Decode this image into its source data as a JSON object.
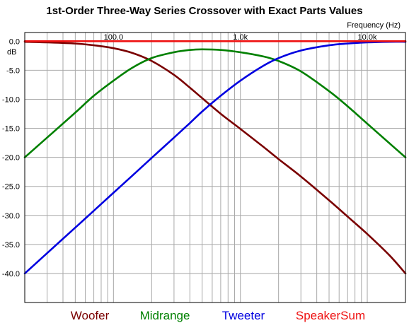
{
  "chart_data": {
    "type": "line",
    "title": "1st-Order Three-Way Series Crossover with Exact Parts Values",
    "xlabel": "Frequency  (Hz)",
    "ylabel": "dB",
    "xscale": "log",
    "xlim": [
      20,
      20000
    ],
    "ylim": [
      -45,
      1.5
    ],
    "x_ticks": [
      {
        "value": 100,
        "label": "100.0"
      },
      {
        "value": 1000,
        "label": "1.0k"
      },
      {
        "value": 10000,
        "label": "10.0k"
      }
    ],
    "y_ticks": [
      {
        "value": 0,
        "label": "0.0"
      },
      {
        "value": -5,
        "label": "-5.0"
      },
      {
        "value": -10,
        "label": "-10.0"
      },
      {
        "value": -15,
        "label": "-15.0"
      },
      {
        "value": -20,
        "label": "-20.0"
      },
      {
        "value": -25,
        "label": "-25.0"
      },
      {
        "value": -30,
        "label": "-30.0"
      },
      {
        "value": -35,
        "label": "-35.0"
      },
      {
        "value": -40,
        "label": "-40.0"
      }
    ],
    "grid": true,
    "legend_position": "bottom",
    "series": [
      {
        "name": "Woofer",
        "color": "#7a0000",
        "x": [
          20,
          30,
          50,
          70,
          100,
          140,
          200,
          300,
          400,
          500,
          700,
          1000,
          1500,
          2000,
          3000,
          5000,
          7000,
          10000,
          15000,
          20000
        ],
        "y": [
          -0.1,
          -0.2,
          -0.4,
          -0.7,
          -1.2,
          -2.0,
          -3.4,
          -5.8,
          -8.0,
          -9.8,
          -12.5,
          -15.1,
          -18.1,
          -20.3,
          -23.3,
          -27.4,
          -30.2,
          -33.2,
          -36.9,
          -40.0
        ]
      },
      {
        "name": "Midrange",
        "color": "#008000",
        "x": [
          20,
          30,
          50,
          70,
          100,
          140,
          200,
          300,
          400,
          500,
          700,
          1000,
          1500,
          2000,
          3000,
          5000,
          7000,
          10000,
          15000,
          20000
        ],
        "y": [
          -20.0,
          -16.6,
          -12.3,
          -9.4,
          -6.8,
          -4.6,
          -2.9,
          -1.9,
          -1.5,
          -1.4,
          -1.5,
          -1.9,
          -2.6,
          -3.4,
          -5.2,
          -8.6,
          -11.2,
          -14.2,
          -17.6,
          -20.0
        ]
      },
      {
        "name": "Tweeter",
        "color": "#0000e0",
        "x": [
          20,
          30,
          50,
          70,
          100,
          140,
          200,
          300,
          400,
          500,
          700,
          1000,
          1500,
          2000,
          3000,
          5000,
          7000,
          10000,
          15000,
          20000
        ],
        "y": [
          -40.0,
          -36.5,
          -32.1,
          -29.2,
          -26.1,
          -23.2,
          -20.1,
          -16.6,
          -14.1,
          -12.1,
          -9.4,
          -6.8,
          -4.3,
          -2.9,
          -1.6,
          -0.7,
          -0.4,
          -0.2,
          -0.1,
          -0.1
        ]
      },
      {
        "name": "SpeakerSum",
        "color": "#ee1111",
        "x": [
          20,
          20000
        ],
        "y": [
          0.0,
          0.0
        ]
      }
    ]
  }
}
